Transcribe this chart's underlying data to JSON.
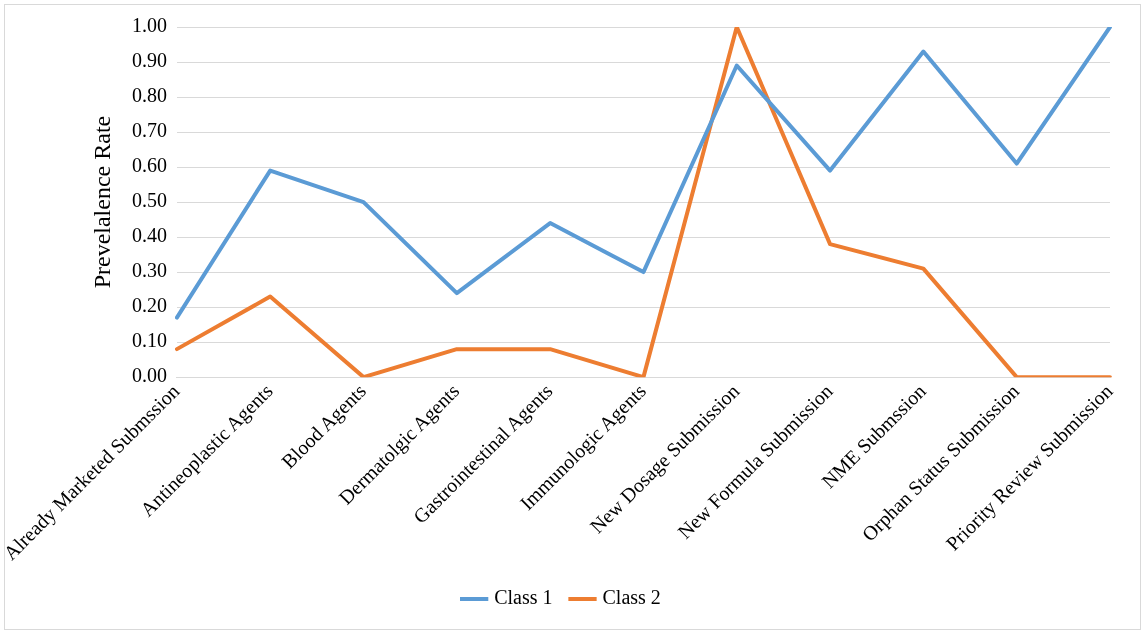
{
  "chart_data": {
    "type": "line",
    "ylabel": "Prevelalence Rate",
    "categories": [
      "Already Marketed Submssion",
      "Antineoplastic Agents",
      "Blood Agents",
      "Dermatolgic Agents",
      "Gastrointestinal Agents",
      "Immunologic Agents",
      "New Dosage Submission",
      "New Formula Submission",
      "NME Submssion",
      "Orphan Status Submission",
      "Priority Review Submission"
    ],
    "series": [
      {
        "name": "Class 1",
        "color": "#5b9bd5",
        "values": [
          0.17,
          0.59,
          0.5,
          0.24,
          0.44,
          0.3,
          0.89,
          0.59,
          0.93,
          0.61,
          1.0
        ]
      },
      {
        "name": "Class 2",
        "color": "#ed7d31",
        "values": [
          0.08,
          0.23,
          0.0,
          0.08,
          0.08,
          0.0,
          1.0,
          0.38,
          0.31,
          0.0,
          0.0
        ]
      }
    ],
    "ylim": [
      0,
      1
    ],
    "yticks": [
      {
        "value": 0,
        "label": "0.00"
      },
      {
        "value": 0.1,
        "label": "0.10"
      },
      {
        "value": 0.2,
        "label": "0.20"
      },
      {
        "value": 0.3,
        "label": "0.30"
      },
      {
        "value": 0.4,
        "label": "0.40"
      },
      {
        "value": 0.5,
        "label": "0.50"
      },
      {
        "value": 0.6,
        "label": "0.60"
      },
      {
        "value": 0.7,
        "label": "0.70"
      },
      {
        "value": 0.8,
        "label": "0.80"
      },
      {
        "value": 0.9,
        "label": "0.90"
      },
      {
        "value": 1,
        "label": "1.00"
      }
    ],
    "grid": "y",
    "legend": "bottom",
    "marker": "none",
    "line_style": "solid"
  }
}
